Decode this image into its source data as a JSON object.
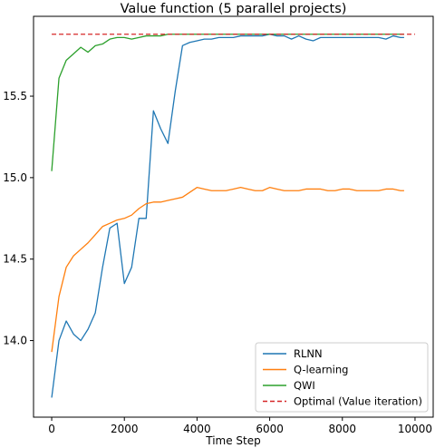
{
  "chart_data": {
    "type": "line",
    "title": "Value function (5 parallel projects)",
    "xlabel": "Time Step",
    "ylabel": "",
    "xlim": [
      -500,
      10500
    ],
    "ylim": [
      13.53,
      15.99
    ],
    "xticks": [
      0,
      2000,
      4000,
      6000,
      8000,
      10000
    ],
    "xtick_labels": [
      "0",
      "2000",
      "4000",
      "6000",
      "8000",
      "10000"
    ],
    "yticks": [
      14.0,
      14.5,
      15.0,
      15.5
    ],
    "ytick_labels": [
      "14.0",
      "14.5",
      "15.0",
      "15.5"
    ],
    "grid": false,
    "legend_position": "lower-right",
    "series": [
      {
        "name": "RLNN",
        "color": "#1f77b4",
        "dashed": false,
        "x": [
          0,
          200,
          400,
          600,
          800,
          1000,
          1200,
          1400,
          1600,
          1800,
          2000,
          2200,
          2400,
          2600,
          2800,
          3000,
          3200,
          3400,
          3600,
          3800,
          4000,
          4200,
          4400,
          4600,
          4800,
          5000,
          5200,
          5400,
          5600,
          5800,
          6000,
          6200,
          6400,
          6600,
          6800,
          7000,
          7200,
          7400,
          7600,
          7800,
          8000,
          8200,
          8400,
          8600,
          8800,
          9000,
          9200,
          9400,
          9600,
          9700
        ],
        "y": [
          13.65,
          14.0,
          14.12,
          14.04,
          14.0,
          14.07,
          14.17,
          14.45,
          14.69,
          14.72,
          14.35,
          14.45,
          14.75,
          14.75,
          15.41,
          15.3,
          15.21,
          15.53,
          15.81,
          15.83,
          15.84,
          15.85,
          15.85,
          15.86,
          15.86,
          15.86,
          15.87,
          15.87,
          15.87,
          15.87,
          15.88,
          15.87,
          15.87,
          15.85,
          15.87,
          15.85,
          15.84,
          15.86,
          15.86,
          15.86,
          15.86,
          15.86,
          15.86,
          15.86,
          15.86,
          15.86,
          15.85,
          15.87,
          15.86,
          15.86
        ]
      },
      {
        "name": "Q-learning",
        "color": "#ff7f0e",
        "dashed": false,
        "x": [
          0,
          200,
          400,
          600,
          800,
          1000,
          1200,
          1400,
          1600,
          1800,
          2000,
          2200,
          2400,
          2600,
          2800,
          3000,
          3200,
          3400,
          3600,
          3800,
          4000,
          4200,
          4400,
          4600,
          4800,
          5000,
          5200,
          5400,
          5600,
          5800,
          6000,
          6200,
          6400,
          6600,
          6800,
          7000,
          7200,
          7400,
          7600,
          7800,
          8000,
          8200,
          8400,
          8600,
          8800,
          9000,
          9200,
          9400,
          9600,
          9700
        ],
        "y": [
          13.93,
          14.27,
          14.45,
          14.52,
          14.56,
          14.6,
          14.65,
          14.7,
          14.72,
          14.74,
          14.75,
          14.77,
          14.81,
          14.84,
          14.85,
          14.85,
          14.86,
          14.87,
          14.88,
          14.91,
          14.94,
          14.93,
          14.92,
          14.92,
          14.92,
          14.93,
          14.94,
          14.93,
          14.92,
          14.92,
          14.94,
          14.93,
          14.92,
          14.92,
          14.92,
          14.93,
          14.93,
          14.93,
          14.92,
          14.92,
          14.93,
          14.93,
          14.92,
          14.92,
          14.92,
          14.92,
          14.93,
          14.93,
          14.92,
          14.92
        ]
      },
      {
        "name": "QWI",
        "color": "#2ca02c",
        "dashed": false,
        "x": [
          0,
          200,
          400,
          600,
          800,
          1000,
          1200,
          1400,
          1600,
          1800,
          2000,
          2200,
          2400,
          2600,
          2800,
          3000,
          3200,
          3400,
          3600,
          3800,
          4000,
          4200,
          4400,
          4600,
          4800,
          5000,
          5200,
          5400,
          5600,
          5800,
          6000,
          6200,
          6400,
          6600,
          6800,
          7000,
          7200,
          7400,
          7600,
          7800,
          8000,
          8200,
          8400,
          8600,
          8800,
          9000,
          9200,
          9400,
          9600,
          9700
        ],
        "y": [
          15.04,
          15.61,
          15.72,
          15.76,
          15.8,
          15.77,
          15.81,
          15.82,
          15.85,
          15.86,
          15.86,
          15.85,
          15.86,
          15.87,
          15.87,
          15.87,
          15.88,
          15.88,
          15.88,
          15.88,
          15.88,
          15.88,
          15.88,
          15.88,
          15.88,
          15.88,
          15.88,
          15.88,
          15.88,
          15.88,
          15.88,
          15.88,
          15.88,
          15.88,
          15.88,
          15.88,
          15.88,
          15.88,
          15.88,
          15.88,
          15.88,
          15.88,
          15.88,
          15.88,
          15.88,
          15.88,
          15.88,
          15.88,
          15.88,
          15.88
        ]
      },
      {
        "name": "Optimal (Value iteration)",
        "color": "#d62728",
        "dashed": true,
        "x": [
          0,
          10000
        ],
        "y": [
          15.88,
          15.88
        ]
      }
    ]
  }
}
